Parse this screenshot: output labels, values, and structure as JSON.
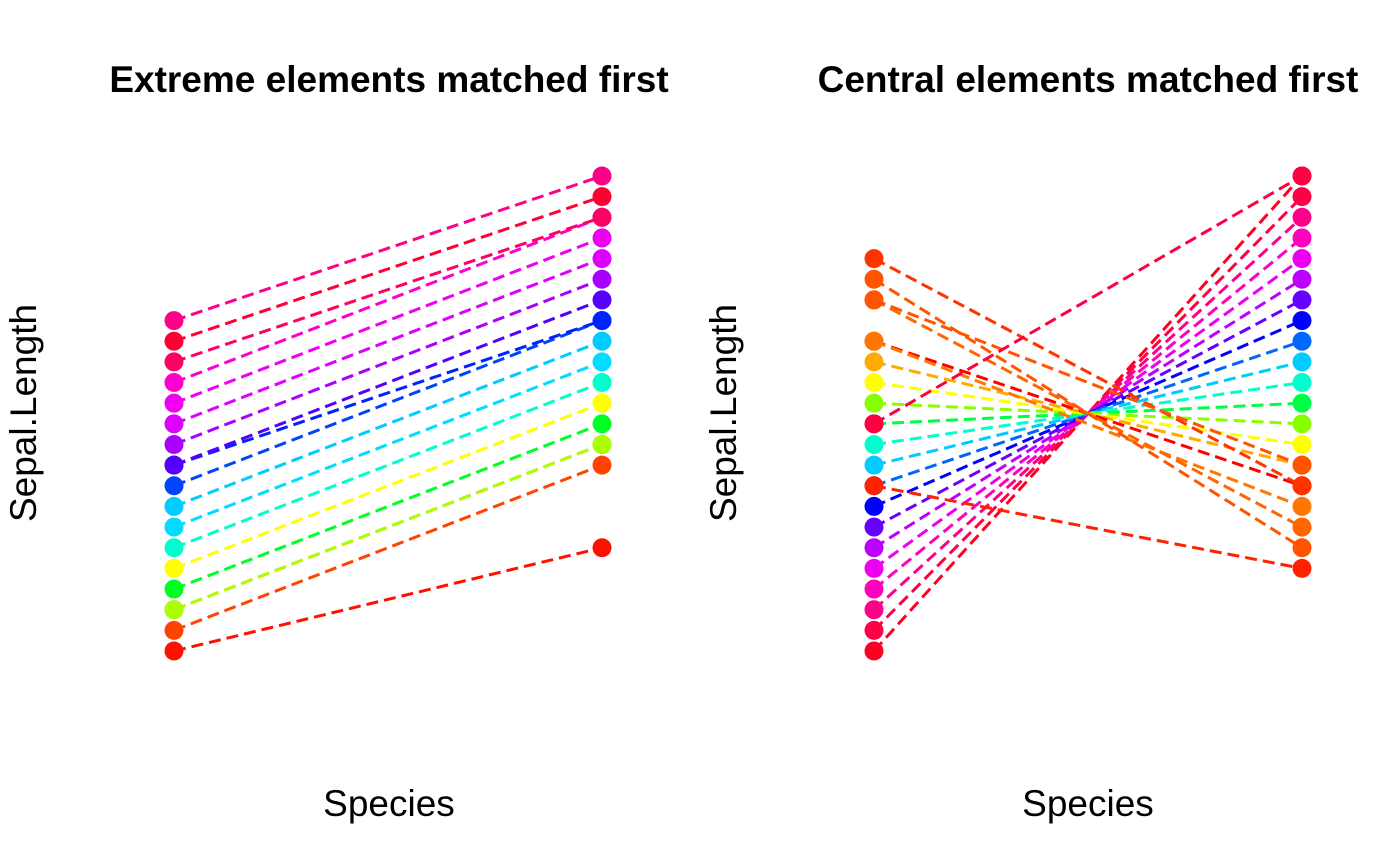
{
  "chart_data": [
    {
      "type": "line",
      "title": "Extreme elements matched first",
      "xlabel": "Species",
      "ylabel": "Sepal.Length",
      "line_style": "dashed",
      "rank_range": [
        1,
        23
      ],
      "matches": [
        {
          "left": 1,
          "right": 6,
          "color": "#FF1100"
        },
        {
          "left": 2,
          "right": 10,
          "color": "#FF4400"
        },
        {
          "left": 3,
          "right": 11,
          "color": "#FF8800"
        },
        {
          "left": 3,
          "right": 11,
          "color": "#AAFF00"
        },
        {
          "left": 4,
          "right": 12,
          "color": "#00FF22"
        },
        {
          "left": 5,
          "right": 13,
          "color": "#FFFF00"
        },
        {
          "left": 6,
          "right": 14,
          "color": "#00FFCC"
        },
        {
          "left": 7,
          "right": 15,
          "color": "#00DDFF"
        },
        {
          "left": 8,
          "right": 16,
          "color": "#00CCFF"
        },
        {
          "left": 9,
          "right": 17,
          "color": "#0044FF"
        },
        {
          "left": 10,
          "right": 17,
          "color": "#0022FF"
        },
        {
          "left": 10,
          "right": 18,
          "color": "#5500FF"
        },
        {
          "left": 11,
          "right": 19,
          "color": "#AA00FF"
        },
        {
          "left": 12,
          "right": 20,
          "color": "#DD00FF"
        },
        {
          "left": 13,
          "right": 21,
          "color": "#EE00EE"
        },
        {
          "left": 14,
          "right": 22,
          "color": "#FF00CC"
        },
        {
          "left": 15,
          "right": 22,
          "color": "#FF0066"
        },
        {
          "left": 16,
          "right": 23,
          "color": "#FF0033"
        },
        {
          "left": 17,
          "right": 24,
          "color": "#FF0088"
        }
      ]
    },
    {
      "type": "line",
      "title": "Central elements matched first",
      "xlabel": "Species",
      "ylabel": "Sepal.Length",
      "line_style": "dashed",
      "rank_range": [
        1,
        23
      ],
      "matches": [
        {
          "left": 1,
          "right": 24,
          "color": "#FF0022"
        },
        {
          "left": 2,
          "right": 23,
          "color": "#FF0044"
        },
        {
          "left": 3,
          "right": 22,
          "color": "#FF0088"
        },
        {
          "left": 4,
          "right": 21,
          "color": "#FF00BB"
        },
        {
          "left": 5,
          "right": 20,
          "color": "#EE00EE"
        },
        {
          "left": 6,
          "right": 19,
          "color": "#BB00FF"
        },
        {
          "left": 7,
          "right": 18,
          "color": "#6600FF"
        },
        {
          "left": 8,
          "right": 17,
          "color": "#0000FF"
        },
        {
          "left": 9,
          "right": 16,
          "color": "#0066FF"
        },
        {
          "left": 10,
          "right": 15,
          "color": "#00CCFF"
        },
        {
          "left": 11,
          "right": 14,
          "color": "#00FFCC"
        },
        {
          "left": 12,
          "right": 13,
          "color": "#00FF44"
        },
        {
          "left": 13,
          "right": 12,
          "color": "#88FF00"
        },
        {
          "left": 14,
          "right": 11,
          "color": "#FFFF00"
        },
        {
          "left": 15,
          "right": 10,
          "color": "#FFAA00"
        },
        {
          "left": 16,
          "right": 9,
          "color": "#FF0000"
        },
        {
          "left": 16,
          "right": 8,
          "color": "#FF7700"
        },
        {
          "left": 18,
          "right": 7,
          "color": "#FF6600"
        },
        {
          "left": 19,
          "right": 6,
          "color": "#FF5500"
        },
        {
          "left": 20,
          "right": 9,
          "color": "#FF3300"
        },
        {
          "left": 18,
          "right": 10,
          "color": "#FF5500"
        },
        {
          "left": 9,
          "right": 5,
          "color": "#FF2200"
        },
        {
          "left": 12,
          "right": 24,
          "color": "#FF0044"
        }
      ]
    }
  ]
}
